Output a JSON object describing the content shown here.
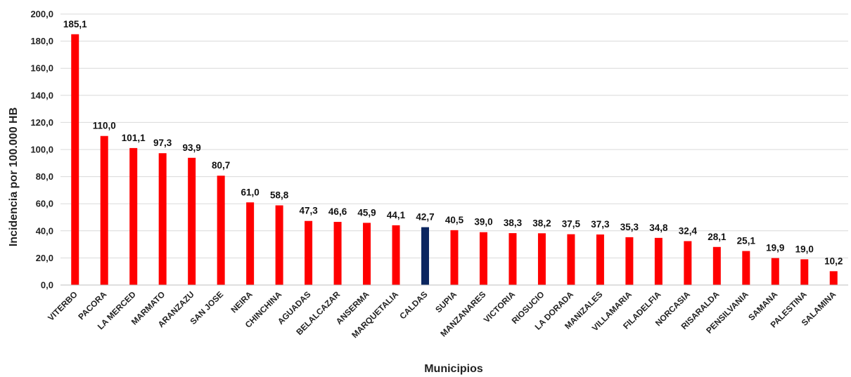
{
  "chart_data": {
    "type": "bar",
    "title": "",
    "xlabel": "Municipios",
    "ylabel": "Incidencia por 100.000 HB",
    "ylim": [
      0,
      200
    ],
    "ytick_step": 20,
    "ytick_labels": [
      "0,0",
      "20,0",
      "40,0",
      "60,0",
      "80,0",
      "100,0",
      "120,0",
      "140,0",
      "160,0",
      "180,0",
      "200,0"
    ],
    "grid": true,
    "legend": "none",
    "colors": {
      "bar": "#ff0000",
      "highlight": "#0b2660",
      "grid": "#d9d9d9"
    },
    "highlight_category": "CALDAS",
    "categories": [
      "VITERBO",
      "PACORA",
      "LA MERCED",
      "MARMATO",
      "ARANZAZU",
      "SAN JOSE",
      "NEIRA",
      "CHINCHINA",
      "AGUADAS",
      "BELALCAZAR",
      "ANSERMA",
      "MARQUETALIA",
      "CALDAS",
      "SUPIA",
      "MANZANARES",
      "VICTORIA",
      "RIOSUCIO",
      "LA DORADA",
      "MANIZALES",
      "VILLAMARIA",
      "FILADELFIA",
      "NORCASIA",
      "RISARALDA",
      "PENSILVANIA",
      "SAMANA",
      "PALESTINA",
      "SALAMINA"
    ],
    "values": [
      185.1,
      110.0,
      101.1,
      97.3,
      93.9,
      80.7,
      61.0,
      58.8,
      47.3,
      46.6,
      45.9,
      44.1,
      42.7,
      40.5,
      39.0,
      38.3,
      38.2,
      37.5,
      37.3,
      35.3,
      34.8,
      32.4,
      28.1,
      25.1,
      19.9,
      19.0,
      10.2
    ],
    "value_labels": [
      "185,1",
      "110,0",
      "101,1",
      "97,3",
      "93,9",
      "80,7",
      "61,0",
      "58,8",
      "47,3",
      "46,6",
      "45,9",
      "44,1",
      "42,7",
      "40,5",
      "39,0",
      "38,3",
      "38,2",
      "37,5",
      "37,3",
      "35,3",
      "34,8",
      "32,4",
      "28,1",
      "25,1",
      "19,9",
      "19,0",
      "10,2"
    ]
  }
}
